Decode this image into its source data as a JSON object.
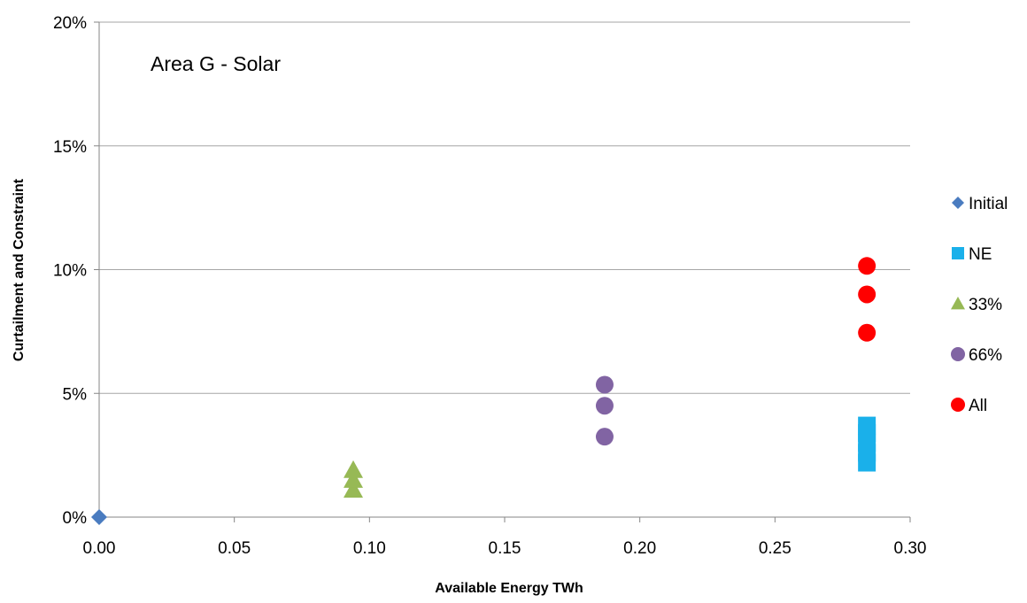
{
  "chart_data": {
    "type": "scatter",
    "annotation": "Area G - Solar",
    "xlabel": "Available Energy TWh",
    "ylabel": "Curtailment and Constraint",
    "xlim": [
      0,
      0.3
    ],
    "ylim": [
      0,
      0.2
    ],
    "x_ticks": [
      "0.00",
      "0.05",
      "0.10",
      "0.15",
      "0.20",
      "0.25",
      "0.30"
    ],
    "y_ticks": [
      "0%",
      "5%",
      "10%",
      "15%",
      "20%"
    ],
    "grid": "horizontal",
    "legend_position": "right",
    "series": [
      {
        "name": "Initial",
        "marker": "diamond",
        "color": "#4a7cc0",
        "points": [
          [
            0.0,
            0.0
          ]
        ]
      },
      {
        "name": "NE",
        "marker": "square",
        "color": "#1ab0ea",
        "points": [
          [
            0.284,
            0.022
          ],
          [
            0.284,
            0.026
          ],
          [
            0.284,
            0.03
          ],
          [
            0.284,
            0.034
          ],
          [
            0.284,
            0.037
          ]
        ]
      },
      {
        "name": "33%",
        "marker": "triangle",
        "color": "#97b955",
        "points": [
          [
            0.094,
            0.011
          ],
          [
            0.094,
            0.015
          ],
          [
            0.094,
            0.019
          ]
        ]
      },
      {
        "name": "66%",
        "marker": "circle",
        "color": "#8164a3",
        "points": [
          [
            0.187,
            0.0325
          ],
          [
            0.187,
            0.045
          ],
          [
            0.187,
            0.0535
          ]
        ]
      },
      {
        "name": "All",
        "marker": "circle",
        "color": "#ff0000",
        "points": [
          [
            0.284,
            0.0745
          ],
          [
            0.284,
            0.09
          ],
          [
            0.284,
            0.1015
          ]
        ]
      }
    ]
  }
}
